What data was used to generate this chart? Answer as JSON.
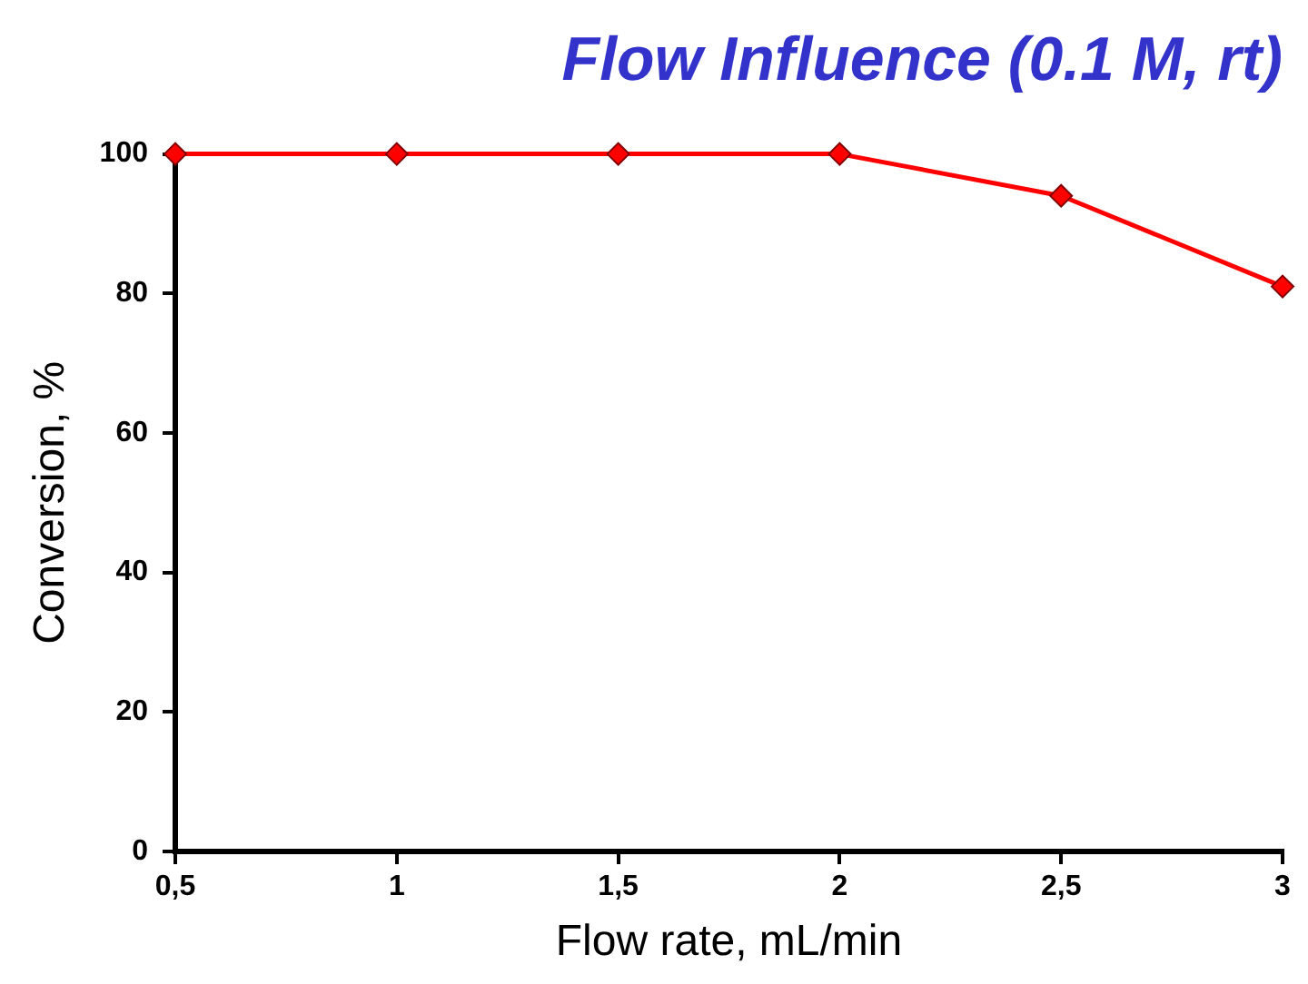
{
  "chart_data": {
    "type": "line",
    "title": "Flow Influence (0.1 M, rt)",
    "xlabel": "Flow rate, mL/min",
    "ylabel": "Conversion, %",
    "x": [
      0.5,
      1,
      1.5,
      2,
      2.5,
      3
    ],
    "series": [
      {
        "color": "#ff0000",
        "values": [
          100,
          100,
          100,
          100,
          94,
          81
        ]
      }
    ],
    "xlim": [
      0.5,
      3
    ],
    "xticks": [
      {
        "value": 0.5,
        "label": "0,5"
      },
      1,
      {
        "value": 1.5,
        "label": "1,5"
      },
      2,
      {
        "value": 2.5,
        "label": "2,5"
      },
      3
    ],
    "ylim": [
      0,
      100
    ],
    "yticks": [
      0,
      20,
      40,
      60,
      80,
      100
    ],
    "grid": false,
    "legend": false,
    "marker": "diamond",
    "line_style": "solid"
  }
}
